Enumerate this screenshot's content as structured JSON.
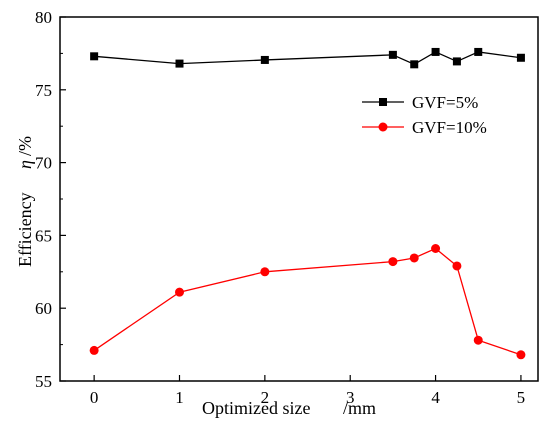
{
  "chart_data": {
    "type": "line",
    "xlabel_main": "Optimized size",
    "xlabel_unit": "/mm",
    "ylabel_main": "Efficiency",
    "ylabel_symbol": "η",
    "ylabel_unit": "/%",
    "xlim": [
      -0.4,
      5.2
    ],
    "ylim": [
      55,
      80
    ],
    "xticks": [
      0,
      1,
      2,
      3,
      4,
      5
    ],
    "yticks": [
      55,
      60,
      65,
      70,
      75,
      80
    ],
    "legend_position": "upper-right",
    "series": [
      {
        "name": "GVF=5%",
        "color": "#000000",
        "marker": "square",
        "x": [
          0,
          1,
          2,
          3.5,
          3.75,
          4,
          4.25,
          4.5,
          5
        ],
        "y": [
          77.3,
          76.8,
          77.05,
          77.4,
          76.75,
          77.6,
          76.95,
          77.6,
          77.2
        ]
      },
      {
        "name": "GVF=10%",
        "color": "#ff0000",
        "marker": "circle",
        "x": [
          0,
          1,
          2,
          3.5,
          3.75,
          4,
          4.25,
          4.5,
          5
        ],
        "y": [
          57.1,
          61.1,
          62.5,
          63.2,
          63.45,
          64.1,
          62.9,
          57.8,
          56.8
        ]
      }
    ]
  }
}
